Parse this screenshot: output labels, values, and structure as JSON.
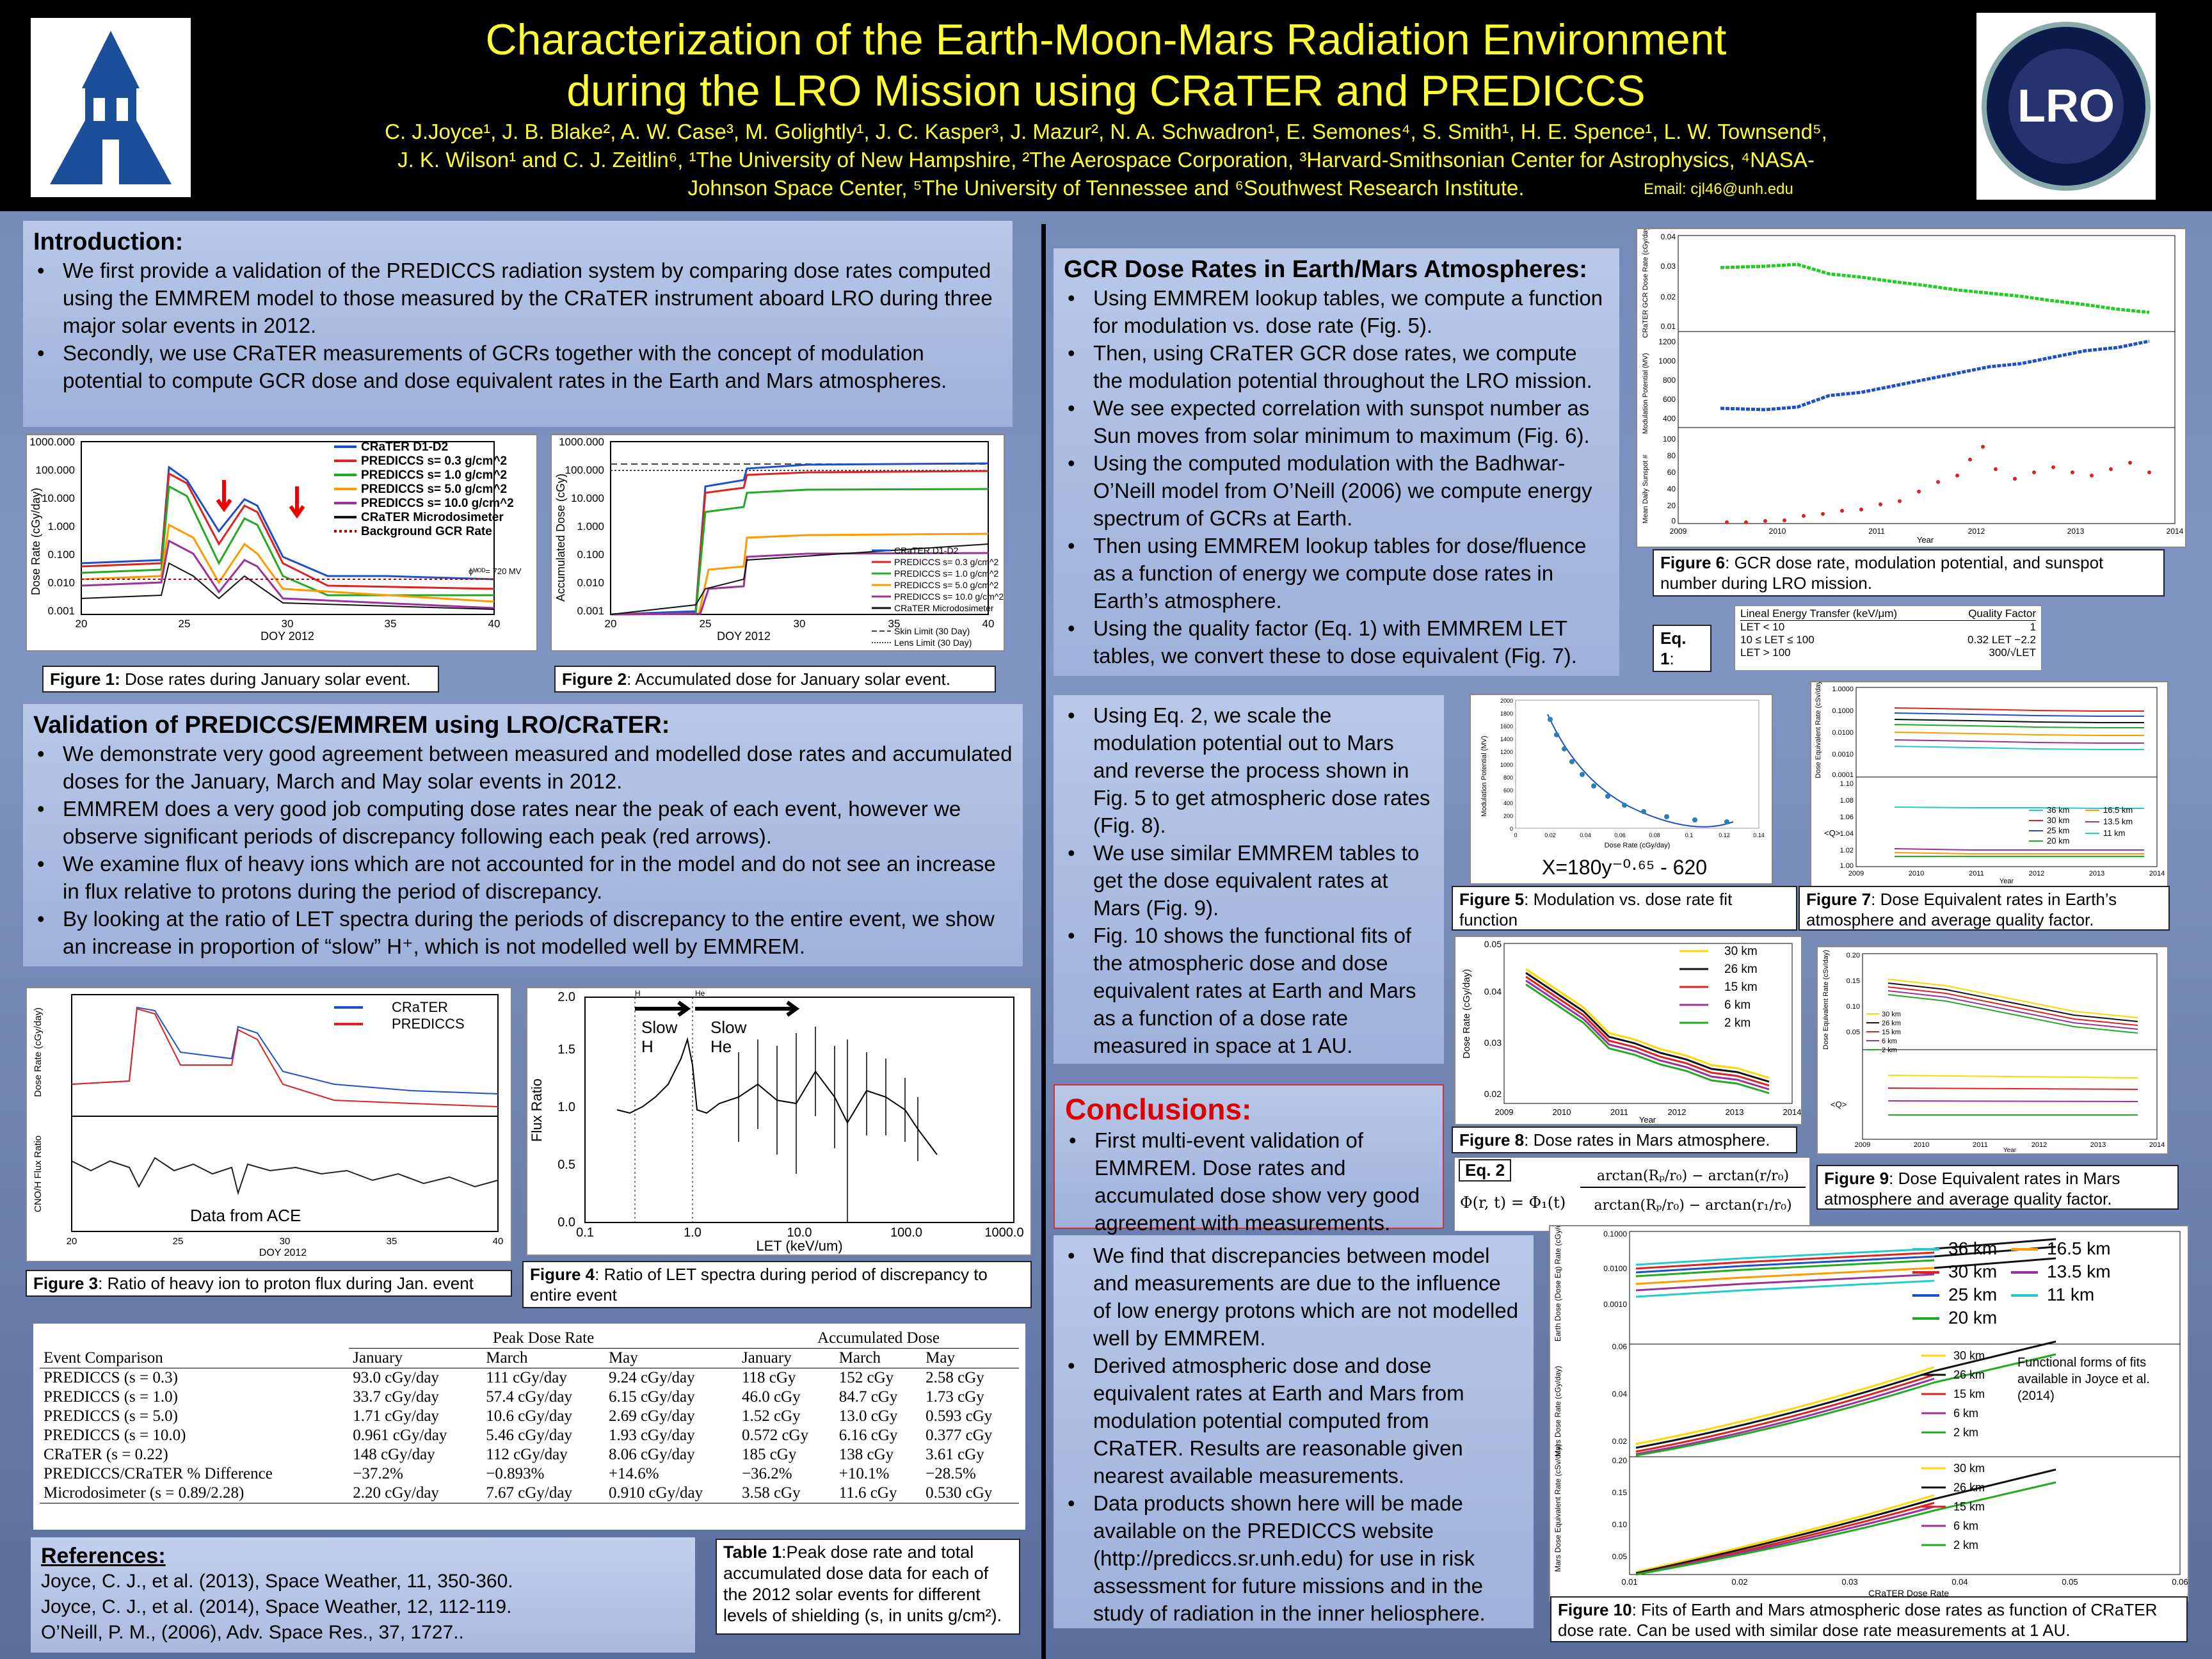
{
  "header": {
    "title_line1": "Characterization of the Earth-Moon-Mars Radiation Environment",
    "title_line2": "during the LRO Mission using CRaTER and PREDICCS",
    "authors_line1": "C. J.Joyce¹, J. B. Blake², A. W. Case³, M. Golightly¹, J. C. Kasper³, J. Mazur², N. A. Schwadron¹, E. Semones⁴, S. Smith¹, H. E. Spence¹, L. W. Townsend⁵,",
    "authors_line2": "J. K. Wilson¹ and C. J. Zeitlin⁶, ¹The University of New Hampshire, ²The Aerospace Corporation, ³Harvard-Smithsonian Center for Astrophysics, ⁴NASA-",
    "authors_line3": "Johnson Space Center, ⁵The University of Tennessee and ⁶Southwest Research Institute.",
    "email": "Email: cjl46@unh.edu",
    "logo_right_text": "LRO"
  },
  "intro": {
    "heading": "Introduction:",
    "bullets": [
      "We first provide a validation of the PREDICCS radiation system by comparing dose rates computed using the EMMREM model to those measured by the CRaTER instrument aboard LRO during three major solar events in 2012.",
      "Secondly, we use CRaTER measurements of GCRs together with the concept of modulation potential to compute GCR dose and dose equivalent rates in the Earth and Mars atmospheres."
    ]
  },
  "fig1": {
    "caption_label": "Figure 1:",
    "caption": " Dose rates during January solar event.",
    "ylabel": "Dose Rate (cGy/day)",
    "xlabel": "DOY 2012",
    "yticks": [
      "1000.000",
      "100.000",
      "10.000",
      "1.000",
      "0.100",
      "0.010",
      "0.001"
    ],
    "xticks": [
      "20",
      "25",
      "30",
      "35",
      "40"
    ],
    "legend": [
      "CRaTER D1-D2",
      "PREDICCS s= 0.3 g/cm^2",
      "PREDICCS s= 1.0 g/cm^2",
      "PREDICCS s= 5.0 g/cm^2",
      "PREDICCS s= 10.0 g/cm^2",
      "CRaTER Microdosimeter",
      "Background GCR Rate"
    ],
    "annotation": "ϕᴹᴼᴰ= 720 MV"
  },
  "fig2": {
    "caption_label": "Figure 2",
    "caption": ": Accumulated dose for January solar event.",
    "ylabel": "Accumulated Dose (cGy)",
    "xlabel": "DOY 2012",
    "yticks": [
      "1000.000",
      "100.000",
      "10.000",
      "1.000",
      "0.100",
      "0.010",
      "0.001"
    ],
    "xticks": [
      "20",
      "25",
      "30",
      "35",
      "40"
    ],
    "legend": [
      "CRaTER D1-D2",
      "PREDICCS s= 0.3 g/cm^2",
      "PREDICCS s= 1.0 g/cm^2",
      "PREDICCS s= 5.0 g/cm^2",
      "PREDICCS s= 10.0 g/cm^2",
      "CRaTER Microdosimeter",
      "Skin Limit (30 Day)",
      "Lens Limit (30 Day)"
    ]
  },
  "validation": {
    "heading": "Validation of PREDICCS/EMMREM using LRO/CRaTER:",
    "bullets": [
      "We demonstrate very good agreement between measured and modelled dose rates and accumulated doses for the January, March and May solar events in 2012.",
      "EMMREM does a very good job computing dose rates near the peak of each event, however we observe significant periods of discrepancy following each peak (red arrows).",
      "We examine flux of heavy ions which are not accounted for in the model and do not see an increase in flux relative to protons during the period of discrepancy.",
      "By looking at the ratio of LET spectra during the periods of discrepancy to the entire event, we show an increase in proportion of “slow” H⁺, which is not modelled well by EMMREM."
    ]
  },
  "fig3": {
    "caption_label": "Figure 3",
    "caption": ": Ratio of heavy ion to proton flux during Jan. event",
    "legend": [
      "CRaTER",
      "PREDICCS"
    ],
    "ylabel_top": "Dose Rate (cGy/day)",
    "ylabel_bottom": "CNO/H Flux Ratio",
    "xlabel": "DOY 2012",
    "xticks": [
      "20",
      "25",
      "30",
      "35",
      "40"
    ],
    "note": "Data  from ACE"
  },
  "fig4": {
    "caption_label": "Figure 4",
    "caption": ": Ratio of LET spectra during period of discrepancy to entire event",
    "ylabel": "Flux Ratio",
    "xlabel": "LET (keV/um)",
    "yticks": [
      "2.0",
      "1.5",
      "1.0",
      "0.5",
      "0.0"
    ],
    "xticks": [
      "0.1",
      "1.0",
      "10.0",
      "100.0",
      "1000.0"
    ],
    "slow_h": "Slow\nH",
    "slow_he": "Slow\nHe",
    "mark_h": "H",
    "mark_he": "He"
  },
  "table1": {
    "group1": "Peak Dose Rate",
    "group2": "Accumulated Dose",
    "col0": "Event Comparison",
    "cols": [
      "January",
      "March",
      "May",
      "January",
      "March",
      "May"
    ],
    "rows": [
      [
        "PREDICCS (s = 0.3)",
        "93.0 cGy/day",
        "111 cGy/day",
        "9.24 cGy/day",
        "118 cGy",
        "152 cGy",
        "2.58 cGy"
      ],
      [
        "PREDICCS (s = 1.0)",
        "33.7 cGy/day",
        "57.4 cGy/day",
        "6.15 cGy/day",
        "46.0 cGy",
        "84.7 cGy",
        "1.73 cGy"
      ],
      [
        "PREDICCS (s = 5.0)",
        "1.71 cGy/day",
        "10.6 cGy/day",
        "2.69 cGy/day",
        "1.52 cGy",
        "13.0 cGy",
        "0.593 cGy"
      ],
      [
        "PREDICCS (s = 10.0)",
        "0.961 cGy/day",
        "5.46 cGy/day",
        "1.93 cGy/day",
        "0.572 cGy",
        "6.16 cGy",
        "0.377 cGy"
      ],
      [
        "CRaTER (s = 0.22)",
        "148 cGy/day",
        "112 cGy/day",
        "8.06 cGy/day",
        "185 cGy",
        "138 cGy",
        "3.61 cGy"
      ],
      [
        "PREDICCS/CRaTER % Difference",
        "−37.2%",
        "−0.893%",
        "+14.6%",
        "−36.2%",
        "+10.1%",
        "−28.5%"
      ],
      [
        "Microdosimeter (s = 0.89/2.28)",
        "2.20 cGy/day",
        "7.67 cGy/day",
        "0.910 cGy/day",
        "3.58 cGy",
        "11.6 cGy",
        "0.530 cGy"
      ]
    ],
    "caption_label": "Table 1",
    "caption": ":Peak dose rate and total accumulated dose data for each of the 2012 solar events for different levels of shielding (s, in units g/cm²)."
  },
  "references": {
    "heading": "References:",
    "items": [
      "Joyce, C. J., et al. (2013), Space Weather, 11, 350-360.",
      "Joyce, C. J., et al. (2014), Space Weather, 12, 112-119.",
      "O’Neill, P. M., (2006), Adv. Space Res., 37, 1727.."
    ]
  },
  "gcr": {
    "heading": "GCR Dose Rates in Earth/Mars Atmospheres:",
    "bullets": [
      "Using EMMREM lookup tables, we compute a function for modulation vs. dose rate (Fig. 5).",
      "Then, using CRaTER GCR dose rates, we compute the modulation potential throughout the LRO mission.",
      "We see expected correlation with sunspot number as Sun moves from solar minimum to maximum (Fig. 6).",
      "Using the computed modulation with the Badhwar-O’Neill model from O’Neill (2006) we compute energy spectrum of GCRs at Earth.",
      "Then using EMMREM lookup tables for dose/fluence as a function of energy we compute dose rates in Earth’s atmosphere.",
      "Using the quality factor (Eq. 1) with EMMREM LET tables, we convert these to dose equivalent (Fig. 7)."
    ]
  },
  "fig6": {
    "caption_label": "Figure 6",
    "caption": ": GCR dose rate, modulation potential, and sunspot number during LRO mission.",
    "ylabel1": "CRaTER GCR Dose Rate (cGy/day)",
    "ylabel2": "Modulation Potential (MV)",
    "ylabel3": "Mean Daily Sunspot #",
    "xlabel": "Year",
    "xticks": [
      "2009",
      "2010",
      "2011",
      "2012",
      "2013",
      "2014"
    ],
    "yticks1": [
      "0.04",
      "0.03",
      "0.02",
      "0.01"
    ],
    "yticks2": [
      "1200",
      "1000",
      "800",
      "600",
      "400"
    ],
    "yticks3": [
      "100",
      "80",
      "60",
      "40",
      "20",
      "0"
    ]
  },
  "eq1": {
    "label": "Eq. 1",
    "h1": "Lineal Energy Transfer (keV/μm)",
    "h2": "Quality Factor",
    "rows": [
      [
        "LET < 10",
        "1"
      ],
      [
        "10 ≤ LET ≤ 100",
        "0.32 LET −2.2"
      ],
      [
        "LET > 100",
        "300/√LET"
      ]
    ]
  },
  "mars": {
    "bullets": [
      "Using Eq. 2, we scale the modulation potential out to Mars and reverse the process shown in Fig. 5 to get atmospheric dose rates (Fig. 8).",
      " We use similar EMMREM tables to get the dose equivalent rates at Mars (Fig. 9).",
      "Fig. 10 shows the functional fits of the atmospheric dose and dose equivalent rates at Earth and Mars as a function of a dose rate measured in space at 1 AU."
    ]
  },
  "fig5": {
    "caption_label": "Figure 5",
    "caption": ": Modulation vs. dose rate fit function",
    "formula": "X=180y⁻⁰·⁶⁵ - 620",
    "ylabel": "Modulation Potential (MV)",
    "xlabel": "Dose Rate (cGy/day)",
    "yticks": [
      "2000",
      "1800",
      "1600",
      "1400",
      "1200",
      "1000",
      "800",
      "600",
      "400",
      "200",
      "0"
    ],
    "xticks": [
      "0",
      "0.02",
      "0.04",
      "0.06",
      "0.08",
      "0.1",
      "0.12",
      "0.14"
    ]
  },
  "fig7": {
    "caption_label": "Figure 7",
    "caption": ":  Dose Equivalent rates in Earth’s atmosphere and average quality factor.",
    "ylabel": "Dose Equivalent Rate (cSv/day)",
    "ylabel2": "<Q>",
    "xlabel": "Year",
    "xticks": [
      "2009",
      "2010",
      "2011",
      "2012",
      "2013",
      "2014"
    ],
    "yticks": [
      "1.0000",
      "0.1000",
      "0.0100",
      "0.0010",
      "0.0001"
    ],
    "yticks2": [
      "1.10",
      "1.08",
      "1.06",
      "1.04",
      "1.02",
      "1.00"
    ],
    "legend": [
      "36 km",
      "30 km",
      "25 km",
      "20 km",
      "16.5 km",
      "13.5 km",
      "11 km"
    ]
  },
  "fig8": {
    "caption_label": "Figure 8",
    "caption": ": Dose rates in Mars atmosphere.",
    "ylabel": "Dose Rate (cGy/day)",
    "xlabel": "Year",
    "xticks": [
      "2009",
      "2010",
      "2011",
      "2012",
      "2013",
      "2014"
    ],
    "yticks": [
      "0.05",
      "0.04",
      "0.03",
      "0.02"
    ],
    "legend": [
      "30 km",
      "26 km",
      "15 km",
      "6 km",
      "2 km"
    ]
  },
  "fig9": {
    "caption_label": "Figure 9",
    "caption": ": Dose Equivalent rates in Mars atmosphere and average quality factor.",
    "ylabel": "Dose Equivalent Rate (cSv/day)",
    "ylabel2": "<Q>",
    "xlabel": "Year",
    "xticks": [
      "2009",
      "2010",
      "2011",
      "2012",
      "2013",
      "2014"
    ],
    "yticks": [
      "0.20",
      "0.15",
      "0.10",
      "0.05"
    ],
    "legend": [
      "30 km",
      "26 km",
      "15 km",
      "6 km",
      "2 km"
    ]
  },
  "eq2": {
    "label": "Eq. 2",
    "lhs": "Φ(r, t) = Φ₁(t)",
    "num": "arctan(Rₚ/r₀) − arctan(r/r₀)",
    "den": "arctan(Rₚ/r₀) − arctan(r₁/r₀)"
  },
  "conclusions": {
    "heading": "Conclusions:",
    "bullets": [
      "First multi-event validation of EMMREM. Dose rates and accumulated dose show very good agreement with measurements.",
      "We find that discrepancies between model and measurements are due to the influence of low energy protons which are not modelled well by EMMREM.",
      "Derived atmospheric dose  and dose equivalent rates at Earth and Mars from modulation potential computed from CRaTER. Results are reasonable given nearest available measurements.",
      "Data products shown here will be made available on the PREDICCS website (http://prediccs.sr.unh.edu) for use in risk assessment for future missions and in the study of radiation in the inner heliosphere."
    ]
  },
  "fig10": {
    "caption_label": "Figure 10",
    "caption": ": Fits of Earth and Mars atmospheric dose rates as function of CRaTER dose rate. Can be used with similar dose rate measurements at 1 AU.",
    "ylabel1": "Earth Dose (Dose Eq) Rate (cGy/day (cSv/day))",
    "ylabel2": "Mars Dose Rate (cGy/day)",
    "ylabel3": "Mars Dose Equivalent Rate (cSv/day)",
    "xlabel": "CRaTER Dose Rate",
    "xticks": [
      "0.01",
      "0.02",
      "0.03",
      "0.04",
      "0.05",
      "0.06"
    ],
    "yticks1": [
      "0.1000",
      "0.0100",
      "0.0010"
    ],
    "yticks2": [
      "0.06",
      "0.04",
      "0.02"
    ],
    "yticks3": [
      "0.20",
      "0.15",
      "0.10",
      "0.05"
    ],
    "legend_earth_a": [
      "36 km",
      "30 km",
      "25 km",
      "20 km"
    ],
    "legend_earth_b": [
      "16.5 km",
      "13.5 km",
      "11 km"
    ],
    "legend_mars": [
      "30 km",
      "26 km",
      "15 km",
      "6 km",
      "2 km"
    ],
    "note": "Functional forms of fits available in Joyce et al. (2014)"
  },
  "colors": {
    "title": "#ffff33",
    "blue": "#1f4fc8",
    "red": "#d22",
    "green": "#2a2",
    "orange": "#f90",
    "purple": "#939",
    "cyan": "#2cc",
    "black": "#000"
  }
}
